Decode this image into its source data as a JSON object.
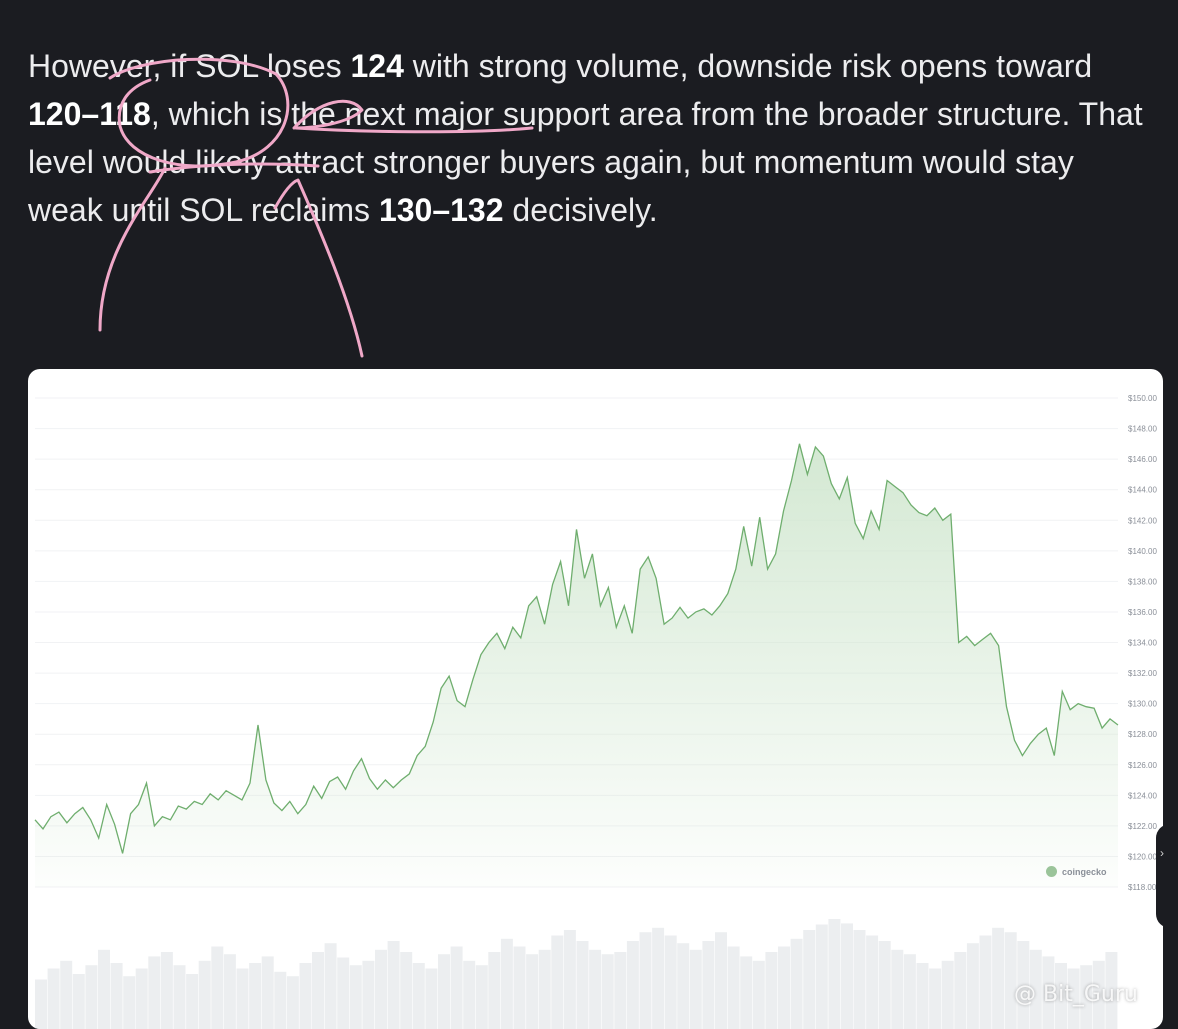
{
  "article": {
    "t1": "However, if SOL loses ",
    "b1": "124",
    "t2": " with strong volume, downside risk opens toward ",
    "b2": "120–118",
    "t3": ", which is the next major support area from the broader structure. That level would likely attract stronger buyers again, but momentum would stay weak until SOL reclaims ",
    "b3": "130–132",
    "t4": " decisively."
  },
  "colors": {
    "page_bg": "#1b1c21",
    "line": "#6fae6e",
    "area": "#cfe6ce",
    "annotation": "#f0a8c8"
  },
  "chart_data": {
    "type": "area",
    "y_ticks": [
      "$150.00",
      "$148.00",
      "$146.00",
      "$144.00",
      "$142.00",
      "$140.00",
      "$138.00",
      "$136.00",
      "$134.00",
      "$132.00",
      "$130.00",
      "$128.00",
      "$126.00",
      "$124.00",
      "$122.00",
      "$120.00",
      "$118.00"
    ],
    "ylim": [
      118,
      150
    ],
    "grid": true,
    "series": [
      {
        "values": [
          122.4,
          121.8,
          122.6,
          122.9,
          122.2,
          122.8,
          123.2,
          122.4,
          121.2,
          123.4,
          122.1,
          120.2,
          122.8,
          123.4,
          124.8,
          122.0,
          122.6,
          122.4,
          123.3,
          123.1,
          123.6,
          123.4,
          124.1,
          123.7,
          124.3,
          124.0,
          123.7,
          124.8,
          128.6,
          125.0,
          123.5,
          123.0,
          123.6,
          122.8,
          123.4,
          124.6,
          123.8,
          124.9,
          125.2,
          124.4,
          125.6,
          126.4,
          125.1,
          124.4,
          125.0,
          124.5,
          125.0,
          125.4,
          126.6,
          127.2,
          128.8,
          131.0,
          131.8,
          130.2,
          129.8,
          131.6,
          133.2,
          134.0,
          134.6,
          133.6,
          135.0,
          134.3,
          136.4,
          137.0,
          135.2,
          137.8,
          139.3,
          136.4,
          141.4,
          138.2,
          139.8,
          136.4,
          137.6,
          135.0,
          136.4,
          134.6,
          138.8,
          139.6,
          138.2,
          135.2,
          135.6,
          136.3,
          135.6,
          136.0,
          136.2,
          135.8,
          136.4,
          137.2,
          138.8,
          141.6,
          139.0,
          142.2,
          138.8,
          139.8,
          142.6,
          144.6,
          147.0,
          145.0,
          146.8,
          146.2,
          144.4,
          143.4,
          144.8,
          141.8,
          140.8,
          142.6,
          141.4,
          144.6,
          144.2,
          143.8,
          143.0,
          142.5,
          142.3,
          142.8,
          142.0,
          142.4,
          134.0,
          134.4,
          133.8,
          134.2,
          134.6,
          133.8,
          129.8,
          127.6,
          126.6,
          127.4,
          128.0,
          128.4,
          126.6,
          130.8,
          129.6,
          130.0,
          129.8,
          129.7,
          128.4,
          129.0,
          128.6
        ]
      }
    ],
    "volume": [
      0.45,
      0.55,
      0.62,
      0.5,
      0.58,
      0.72,
      0.6,
      0.48,
      0.55,
      0.66,
      0.7,
      0.58,
      0.5,
      0.62,
      0.75,
      0.68,
      0.55,
      0.6,
      0.66,
      0.52,
      0.48,
      0.6,
      0.7,
      0.78,
      0.65,
      0.58,
      0.62,
      0.72,
      0.8,
      0.7,
      0.6,
      0.55,
      0.68,
      0.75,
      0.62,
      0.58,
      0.7,
      0.82,
      0.75,
      0.68,
      0.72,
      0.85,
      0.9,
      0.8,
      0.72,
      0.68,
      0.7,
      0.8,
      0.88,
      0.92,
      0.85,
      0.78,
      0.72,
      0.8,
      0.88,
      0.75,
      0.66,
      0.62,
      0.7,
      0.75,
      0.82,
      0.9,
      0.95,
      1.0,
      0.96,
      0.9,
      0.85,
      0.8,
      0.72,
      0.68,
      0.6,
      0.55,
      0.62,
      0.7,
      0.78,
      0.85,
      0.92,
      0.88,
      0.8,
      0.72,
      0.66,
      0.6,
      0.55,
      0.58,
      0.62,
      0.7
    ]
  },
  "brand": {
    "name": "coingecko"
  },
  "side_handle": {
    "glyph": "›"
  },
  "watermark": {
    "text": "@ Bit_Guru"
  }
}
